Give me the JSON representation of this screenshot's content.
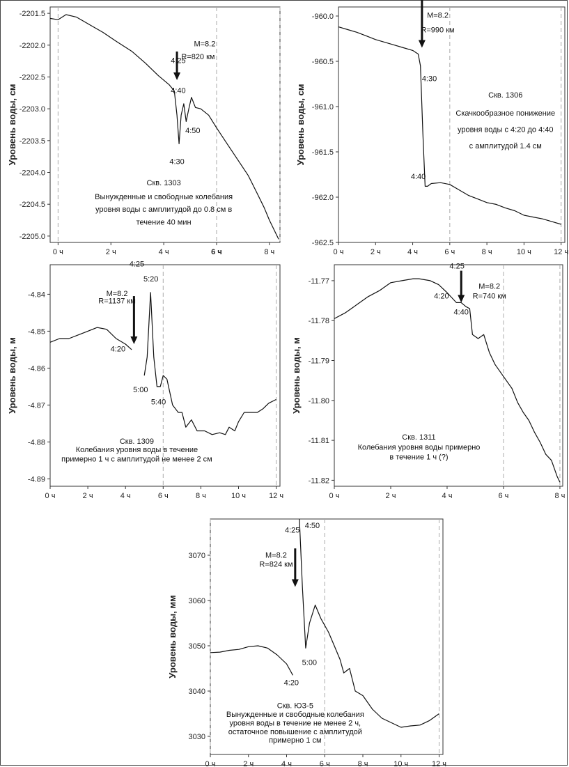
{
  "chart_data": [
    {
      "type": "line",
      "title": "",
      "ylabel": "Уровень воды, см",
      "xlabel": "",
      "xlim": [
        -0.3,
        8.4
      ],
      "ylim": [
        -2205.1,
        -2201.4
      ],
      "y_reversed": true,
      "y_ticks": [
        "-2201.5",
        "-2202.0",
        "-2202.5",
        "-2203.0",
        "-2203.5",
        "-2204.0",
        "-2204.5",
        "-2205.0"
      ],
      "x_ticks": [
        "0 ч",
        "2 ч",
        "4 ч",
        "6 ч",
        "8 ч"
      ],
      "x_tick_bold": [
        false,
        false,
        false,
        true,
        false
      ],
      "grid": "vertical dashed at 0 ч, 6 ч, end",
      "series": [
        {
          "values": [
            [
              -0.3,
              -2201.58
            ],
            [
              0.0,
              -2201.6
            ],
            [
              0.3,
              -2201.52
            ],
            [
              0.7,
              -2201.56
            ],
            [
              1.2,
              -2201.68
            ],
            [
              1.7,
              -2201.8
            ],
            [
              2.2,
              -2201.94
            ],
            [
              2.8,
              -2202.1
            ],
            [
              3.3,
              -2202.28
            ],
            [
              3.8,
              -2202.48
            ],
            [
              4.2,
              -2202.62
            ],
            [
              4.4,
              -2202.72
            ],
            [
              4.5,
              -2203.1
            ],
            [
              4.58,
              -2203.55
            ],
            [
              4.66,
              -2203.1
            ],
            [
              4.76,
              -2202.92
            ],
            [
              4.85,
              -2203.2
            ],
            [
              4.95,
              -2203.0
            ],
            [
              5.05,
              -2202.82
            ],
            [
              5.2,
              -2202.98
            ],
            [
              5.4,
              -2203.0
            ],
            [
              5.7,
              -2203.1
            ],
            [
              6.0,
              -2203.3
            ],
            [
              6.4,
              -2203.55
            ],
            [
              6.8,
              -2203.8
            ],
            [
              7.2,
              -2204.05
            ],
            [
              7.5,
              -2204.3
            ],
            [
              7.8,
              -2204.55
            ],
            [
              8.0,
              -2204.75
            ],
            [
              8.2,
              -2204.92
            ],
            [
              8.35,
              -2205.05
            ]
          ]
        }
      ],
      "labels": [
        {
          "text": "4:25",
          "x": 4.55,
          "y": -2202.28
        },
        {
          "text": "M=8.2",
          "x": 5.55,
          "y": -2202.02
        },
        {
          "text": "R=820 км",
          "x": 5.3,
          "y": -2202.22
        },
        {
          "text": "4:40",
          "x": 4.55,
          "y": -2202.75
        },
        {
          "text": "4:50",
          "x": 5.1,
          "y": -2203.38
        },
        {
          "text": "4:30",
          "x": 4.5,
          "y": -2203.87
        },
        {
          "text": "Скв. 1303",
          "x": 4.0,
          "y": -2204.2
        },
        {
          "text": "Вынужденные и свободные колебания",
          "x": 4.0,
          "y": -2204.42
        },
        {
          "text": "уровня воды с амплитудой до 0.8 см в",
          "x": 4.0,
          "y": -2204.62
        },
        {
          "text": "течение 40 мин",
          "x": 4.0,
          "y": -2204.82
        }
      ],
      "arrow": {
        "x": 4.5,
        "y_from": -2202.1,
        "y_to": -2202.55
      }
    },
    {
      "type": "line",
      "title": "",
      "ylabel": "Уровень воды, см",
      "xlabel": "",
      "xlim": [
        0,
        12.2
      ],
      "ylim": [
        -962.5,
        -959.9
      ],
      "y_reversed": true,
      "y_ticks": [
        "-960.0",
        "-960.5",
        "-961.0",
        "-961.5",
        "-962.0",
        "-962.5"
      ],
      "x_ticks": [
        "0 ч",
        "2 ч",
        "4 ч",
        "6 ч",
        "8 ч",
        "10 ч",
        "12 ч"
      ],
      "grid": "vertical dashed at 6 ч, 12 ч",
      "series": [
        {
          "values": [
            [
              0.0,
              -960.12
            ],
            [
              0.5,
              -960.15
            ],
            [
              1.0,
              -960.18
            ],
            [
              1.5,
              -960.22
            ],
            [
              2.0,
              -960.26
            ],
            [
              2.5,
              -960.29
            ],
            [
              3.0,
              -960.32
            ],
            [
              3.5,
              -960.35
            ],
            [
              4.0,
              -960.38
            ],
            [
              4.3,
              -960.42
            ],
            [
              4.42,
              -960.55
            ],
            [
              4.55,
              -961.3
            ],
            [
              4.67,
              -961.88
            ],
            [
              4.8,
              -961.88
            ],
            [
              5.0,
              -961.85
            ],
            [
              5.5,
              -961.84
            ],
            [
              6.0,
              -961.86
            ],
            [
              6.5,
              -961.92
            ],
            [
              7.0,
              -961.98
            ],
            [
              7.5,
              -962.02
            ],
            [
              8.0,
              -962.06
            ],
            [
              8.5,
              -962.08
            ],
            [
              9.0,
              -962.12
            ],
            [
              9.5,
              -962.15
            ],
            [
              10.0,
              -962.2
            ],
            [
              10.5,
              -962.22
            ],
            [
              11.0,
              -962.24
            ],
            [
              11.5,
              -962.27
            ],
            [
              12.0,
              -962.3
            ]
          ]
        }
      ],
      "labels": [
        {
          "text": "4:25",
          "x": 4.5,
          "y": -959.55
        },
        {
          "text": "M=8.2",
          "x": 5.35,
          "y": -960.02
        },
        {
          "text": "R=990 км",
          "x": 5.35,
          "y": -960.18
        },
        {
          "text": "4:30",
          "x": 4.9,
          "y": -960.72
        },
        {
          "text": "4:40",
          "x": 4.3,
          "y": -961.8
        },
        {
          "text": "Скв. 1306",
          "x": 9.0,
          "y": -960.9
        },
        {
          "text": "Скачкообразное понижение",
          "x": 9.0,
          "y": -961.1
        },
        {
          "text": "уровня воды с 4:20 до 4:40",
          "x": 9.0,
          "y": -961.28
        },
        {
          "text": "с амплитудой 1.4 см",
          "x": 9.0,
          "y": -961.46
        }
      ],
      "arrow": {
        "x": 4.5,
        "y_from": -959.65,
        "y_to": -960.35
      }
    },
    {
      "type": "line",
      "title": "",
      "ylabel": "Уровень воды, м",
      "xlabel": "",
      "xlim": [
        0,
        12.2
      ],
      "ylim": [
        -4.892,
        -4.832
      ],
      "y_reversed": true,
      "y_ticks": [
        "-4.84",
        "-4.85",
        "-4.86",
        "-4.87",
        "-4.88",
        "-4.89"
      ],
      "x_ticks": [
        "0 ч",
        "2 ч",
        "4 ч",
        "6 ч",
        "8 ч",
        "10 ч",
        "12 ч"
      ],
      "grid": "vertical dashed at 6 ч, 12 ч",
      "series": [
        {
          "values": [
            [
              0.0,
              -4.853
            ],
            [
              0.5,
              -4.852
            ],
            [
              1.0,
              -4.852
            ],
            [
              1.5,
              -4.851
            ],
            [
              2.0,
              -4.85
            ],
            [
              2.5,
              -4.849
            ],
            [
              3.0,
              -4.8495
            ],
            [
              3.5,
              -4.852
            ],
            [
              4.0,
              -4.8535
            ],
            [
              4.33,
              -4.855
            ]
          ]
        },
        {
          "values": [
            [
              5.0,
              -4.862
            ],
            [
              5.15,
              -4.857
            ],
            [
              5.33,
              -4.8395
            ],
            [
              5.5,
              -4.857
            ],
            [
              5.67,
              -4.865
            ],
            [
              5.85,
              -4.865
            ],
            [
              6.0,
              -4.862
            ],
            [
              6.2,
              -4.863
            ],
            [
              6.5,
              -4.87
            ],
            [
              6.8,
              -4.872
            ],
            [
              7.0,
              -4.872
            ],
            [
              7.2,
              -4.876
            ],
            [
              7.5,
              -4.874
            ],
            [
              7.8,
              -4.877
            ],
            [
              8.2,
              -4.877
            ],
            [
              8.6,
              -4.878
            ],
            [
              9.0,
              -4.8775
            ],
            [
              9.3,
              -4.878
            ],
            [
              9.5,
              -4.876
            ],
            [
              9.8,
              -4.877
            ],
            [
              10.0,
              -4.8745
            ],
            [
              10.3,
              -4.872
            ],
            [
              10.6,
              -4.872
            ],
            [
              11.0,
              -4.872
            ],
            [
              11.3,
              -4.871
            ],
            [
              11.6,
              -4.8695
            ],
            [
              12.0,
              -4.8685
            ]
          ]
        }
      ],
      "labels": [
        {
          "text": "4:25",
          "x": 4.6,
          "y": -4.8325
        },
        {
          "text": "5:20",
          "x": 5.35,
          "y": -4.8365
        },
        {
          "text": "M=8.2",
          "x": 3.55,
          "y": -4.8405
        },
        {
          "text": "R=1137 км",
          "x": 3.55,
          "y": -4.8425
        },
        {
          "text": "4:20",
          "x": 3.6,
          "y": -4.8555
        },
        {
          "text": "5:00",
          "x": 4.8,
          "y": -4.8665
        },
        {
          "text": "5:40",
          "x": 5.75,
          "y": -4.8698
        },
        {
          "text": "Скв. 1309",
          "x": 4.6,
          "y": -4.8805
        },
        {
          "text": "Колебания уровня воды в течение",
          "x": 4.6,
          "y": -4.8828
        },
        {
          "text": "примерно 1 ч с амплитудой не менее 2 см",
          "x": 4.6,
          "y": -4.8853
        }
      ],
      "arrow": {
        "x": 4.45,
        "y_from": -4.8405,
        "y_to": -4.8535
      }
    },
    {
      "type": "line",
      "title": "",
      "ylabel": "Уровень воды, м",
      "xlabel": "",
      "xlim": [
        0,
        8.1
      ],
      "ylim": [
        -11.8215,
        -11.766
      ],
      "y_reversed": true,
      "y_ticks": [
        "-11.77",
        "-11.78",
        "-11.79",
        "-11.80",
        "-11.81",
        "-11.82"
      ],
      "x_ticks": [
        "0 ч",
        "2 ч",
        "4 ч",
        "6 ч",
        "8 ч"
      ],
      "grid": "vertical dashed at 6 ч, 8 ч",
      "series": [
        {
          "values": [
            [
              0.0,
              -11.7795
            ],
            [
              0.4,
              -11.778
            ],
            [
              0.8,
              -11.776
            ],
            [
              1.2,
              -11.774
            ],
            [
              1.6,
              -11.7725
            ],
            [
              2.0,
              -11.7705
            ],
            [
              2.4,
              -11.77
            ],
            [
              2.8,
              -11.7695
            ],
            [
              3.0,
              -11.7695
            ],
            [
              3.4,
              -11.77
            ],
            [
              3.7,
              -11.771
            ],
            [
              4.0,
              -11.773
            ],
            [
              4.33,
              -11.7755
            ],
            [
              4.5,
              -11.7755
            ],
            [
              4.67,
              -11.7765
            ],
            [
              4.8,
              -11.777
            ],
            [
              4.9,
              -11.7835
            ],
            [
              5.1,
              -11.7845
            ],
            [
              5.3,
              -11.7835
            ],
            [
              5.5,
              -11.788
            ],
            [
              5.7,
              -11.791
            ],
            [
              5.9,
              -11.793
            ],
            [
              6.1,
              -11.795
            ],
            [
              6.3,
              -11.797
            ],
            [
              6.5,
              -11.8005
            ],
            [
              6.7,
              -11.803
            ],
            [
              6.9,
              -11.805
            ],
            [
              7.1,
              -11.808
            ],
            [
              7.3,
              -11.8105
            ],
            [
              7.5,
              -11.8135
            ],
            [
              7.7,
              -11.815
            ],
            [
              7.9,
              -11.819
            ],
            [
              8.0,
              -11.8205
            ]
          ]
        }
      ],
      "labels": [
        {
          "text": "4:25",
          "x": 4.35,
          "y": -11.767
        },
        {
          "text": "M=8.2",
          "x": 5.5,
          "y": -11.772
        },
        {
          "text": "R=740 км",
          "x": 5.5,
          "y": -11.7745
        },
        {
          "text": "4:20",
          "x": 3.8,
          "y": -11.7745
        },
        {
          "text": "4:40",
          "x": 4.5,
          "y": -11.7785
        },
        {
          "text": "Скв. 1311",
          "x": 3.0,
          "y": -11.8098
        },
        {
          "text": "Колебания уровня воды примерно",
          "x": 3.0,
          "y": -11.8123
        },
        {
          "text": "в течение 1 ч (?)",
          "x": 3.0,
          "y": -11.8148
        }
      ],
      "arrow": {
        "x": 4.5,
        "y_from": -11.7675,
        "y_to": -11.7755
      }
    },
    {
      "type": "line",
      "title": "",
      "ylabel": "Уровень воды, мм",
      "xlabel": "",
      "xlim": [
        0,
        12.2
      ],
      "ylim": [
        3026,
        3078
      ],
      "y_ticks": [
        "3070",
        "3060",
        "3050",
        "3040",
        "3030"
      ],
      "x_ticks": [
        "0 ч",
        "2 ч",
        "4 ч",
        "6 ч",
        "8 ч",
        "10 ч",
        "12 ч"
      ],
      "grid": "vertical dashed at 0 ч, 6 ч, 12 ч",
      "series": [
        {
          "values": [
            [
              0.0,
              3048.5
            ],
            [
              0.5,
              3048.6
            ],
            [
              1.0,
              3049.0
            ],
            [
              1.5,
              3049.2
            ],
            [
              2.0,
              3049.8
            ],
            [
              2.5,
              3050.0
            ],
            [
              3.0,
              3049.5
            ],
            [
              3.5,
              3048.0
            ],
            [
              4.0,
              3046.0
            ],
            [
              4.33,
              3043.5
            ]
          ]
        },
        {
          "values": [
            [
              4.67,
              3078.0
            ],
            [
              4.83,
              3063.0
            ],
            [
              5.0,
              3049.5
            ],
            [
              5.2,
              3055.0
            ],
            [
              5.5,
              3059.0
            ],
            [
              5.8,
              3056.0
            ],
            [
              6.2,
              3053.0
            ],
            [
              6.5,
              3050.0
            ],
            [
              6.8,
              3047.0
            ],
            [
              7.0,
              3044.0
            ],
            [
              7.3,
              3045.0
            ],
            [
              7.6,
              3040.0
            ],
            [
              8.0,
              3039.0
            ],
            [
              8.5,
              3036.0
            ],
            [
              9.0,
              3034.0
            ],
            [
              9.5,
              3033.0
            ],
            [
              10.0,
              3032.0
            ],
            [
              10.5,
              3032.3
            ],
            [
              11.0,
              3032.5
            ],
            [
              11.5,
              3033.5
            ],
            [
              12.0,
              3035.0
            ]
          ]
        }
      ],
      "labels": [
        {
          "text": "4:25",
          "x": 4.3,
          "y": 3075.0
        },
        {
          "text": "4:50",
          "x": 5.35,
          "y": 3076.0
        },
        {
          "text": "M=8.2",
          "x": 3.45,
          "y": 3069.5
        },
        {
          "text": "R=824 км",
          "x": 3.45,
          "y": 3067.5
        },
        {
          "text": "5:00",
          "x": 5.2,
          "y": 3045.8
        },
        {
          "text": "4:20",
          "x": 4.25,
          "y": 3041.3
        },
        {
          "text": "Скв. ЮЗ-5",
          "x": 4.45,
          "y": 3036.2
        },
        {
          "text": "Вынужденные и свободные колебания",
          "x": 4.45,
          "y": 3034.3
        },
        {
          "text": "уровня воды в течение не менее 2 ч,",
          "x": 4.45,
          "y": 3032.4
        },
        {
          "text": "остаточное повышение с амплитудой",
          "x": 4.45,
          "y": 3030.5
        },
        {
          "text": "примерно 1 см",
          "x": 4.45,
          "y": 3028.6
        }
      ],
      "arrow": {
        "x": 4.45,
        "y_from": 3071.5,
        "y_to": 3063.0
      }
    }
  ]
}
